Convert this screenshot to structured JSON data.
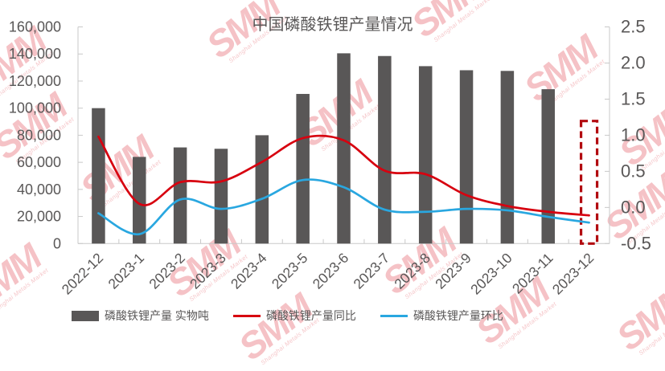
{
  "watermark": {
    "logo": "SMM",
    "subtext": "Shanghai Metals Market"
  },
  "chart_data": {
    "type": "bar+line",
    "title": "中国磷酸铁锂产量情况",
    "categories": [
      "2022-12",
      "2023-1",
      "2023-2",
      "2023-3",
      "2023-4",
      "2023-5",
      "2023-6",
      "2023-7",
      "2023-8",
      "2023-9",
      "2023-10",
      "2023-11",
      "2023-12"
    ],
    "series": [
      {
        "name": "磷酸铁锂产量 实物吨",
        "type": "bar",
        "axis": "left",
        "color": "#595757",
        "values": [
          100000,
          64000,
          71000,
          70000,
          80000,
          110500,
          140500,
          138500,
          131000,
          128000,
          127500,
          114000,
          null
        ]
      },
      {
        "name": "磷酸铁锂产量同比",
        "type": "line",
        "axis": "right",
        "color": "#d7000f",
        "values": [
          0.98,
          0.05,
          0.35,
          0.36,
          0.63,
          0.96,
          0.93,
          0.51,
          0.46,
          0.17,
          0.02,
          -0.06,
          -0.11
        ]
      },
      {
        "name": "磷酸铁锂产量环比",
        "type": "line",
        "axis": "right",
        "color": "#29a7e0",
        "values": [
          -0.08,
          -0.37,
          0.11,
          -0.02,
          0.12,
          0.38,
          0.28,
          -0.03,
          -0.06,
          -0.02,
          -0.04,
          -0.13,
          -0.21
        ]
      }
    ],
    "forecast_box": {
      "category": "2023-12",
      "top_value": 90500,
      "bottom_value": 0,
      "style": "dashed",
      "color": "#b20b10"
    },
    "left_axis": {
      "min": 0,
      "max": 160000,
      "step": 20000,
      "tick_labels": [
        "160,000",
        "140,000",
        "120,000",
        "100,000",
        "80,000",
        "60,000",
        "40,000",
        "20,000",
        "0"
      ]
    },
    "right_axis": {
      "min": -0.5,
      "max": 2.5,
      "step": 0.5,
      "tick_labels": [
        "2.5",
        "2.0",
        "1.5",
        "1.0",
        "0.5",
        "0.0",
        "-0.5"
      ]
    },
    "grid": false,
    "legend_position": "bottom"
  }
}
